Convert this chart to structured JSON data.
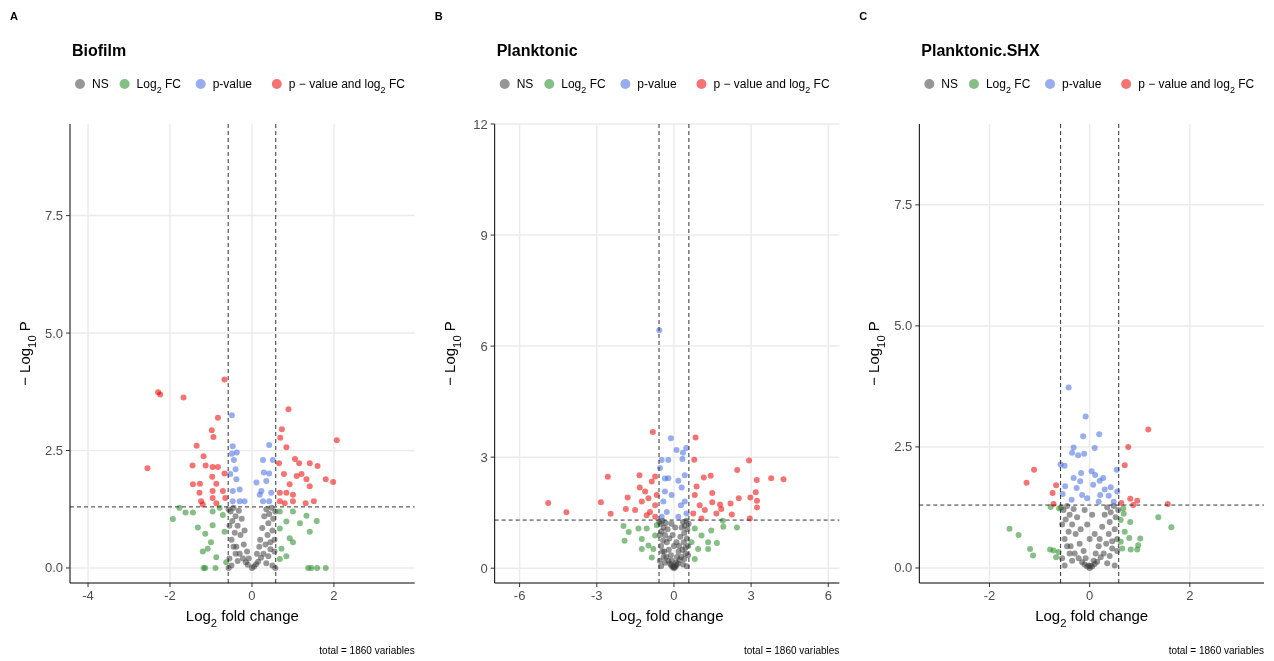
{
  "chart_data": [
    {
      "type": "scatter",
      "title": "Biofilm",
      "xlabel": "Log$_{2}$ fold change",
      "ylabel": "− Log$_{10}$ P",
      "annotations": [
        "A",
        "total = 1860 variables"
      ],
      "xlim": [
        -4.44,
        3.97
      ],
      "ylim": [
        -0.32,
        9.45
      ],
      "xticks": [
        -4,
        -2,
        0,
        2
      ],
      "yticks": [
        {
          "value": 0,
          "label": "0.0"
        },
        {
          "value": 2.5,
          "label": "2.5"
        },
        {
          "value": 5,
          "label": "5.0"
        },
        {
          "value": 7.5,
          "label": "7.5"
        }
      ],
      "grid": true,
      "legend": "top",
      "marker": "circle",
      "ref_lines": [
        {
          "axis": "x",
          "value": -0.58,
          "line_style": "dashed"
        },
        {
          "axis": "x",
          "value": 0.58,
          "line_style": "dashed"
        },
        {
          "axis": "y",
          "value": 1.3,
          "line_style": "dashed"
        }
      ],
      "series": [
        {
          "name": "NS",
          "color": "#404040",
          "x": [
            -0.57,
            -0.55,
            -0.52,
            -0.5,
            -0.48,
            -0.45,
            -0.42,
            -0.4,
            -0.38,
            -0.35,
            -0.32,
            -0.3,
            -0.28,
            -0.25,
            -0.22,
            -0.2,
            -0.18,
            -0.15,
            -0.12,
            -0.1,
            -0.08,
            0,
            0.05,
            0.1,
            0.12,
            0.15,
            0.18,
            0.2,
            0.22,
            0.25,
            0.28,
            0.3,
            0.33,
            0.35,
            0.38,
            0.4,
            0.42,
            0.45,
            0.48,
            0.5,
            0.52,
            0.55,
            0.57,
            -0.55,
            -0.5,
            -0.45,
            -0.4,
            -0.35,
            0.35,
            0.4,
            0.45,
            0.5,
            0.55,
            -0.57,
            0.57
          ],
          "values": [
            1.25,
            0.9,
            1.2,
            0.6,
            1.0,
            1.28,
            0.75,
            1.1,
            0.45,
            0.9,
            1.22,
            0.3,
            0.7,
            1.05,
            0.2,
            0.5,
            0.8,
            0.12,
            0.35,
            0.07,
            0.2,
            0,
            0.03,
            0.08,
            0.3,
            0.13,
            0.45,
            0.6,
            0.22,
            0.85,
            0.3,
            1.1,
            0.5,
            1.25,
            0.7,
            0.95,
            1.15,
            0.55,
            1.28,
            0.8,
            1.05,
            0.35,
            1.2,
            0.2,
            0.05,
            0.45,
            0.3,
            0.15,
            0.1,
            0.25,
            0.4,
            0.05,
            0.6,
            0,
            0
          ]
        },
        {
          "name": "Log$_{2}$ FC",
          "color": "#228b22",
          "x": [
            -1.93,
            -1.77,
            -1.62,
            -1.44,
            -1.32,
            -1.2,
            -1.18,
            -1.14,
            -0.89,
            -1.14,
            -0.96,
            -1.08,
            -0.87,
            -0.71,
            -0.67,
            -0.63,
            -0.79,
            -1.0,
            -0.96,
            0.68,
            0.84,
            1.0,
            1.17,
            1.33,
            1.58,
            1.41,
            0.84,
            0.68,
            0.92,
            0.72,
            1.37,
            1.45,
            1.59,
            1.8,
            0.68,
            1.0
          ],
          "values": [
            1.04,
            1.28,
            1.18,
            1.18,
            0.86,
            0.35,
            0,
            0,
            0,
            0.73,
            0.91,
            0.41,
            0.23,
            1.13,
            0.77,
            0.12,
            1.28,
            0.55,
            1.2,
            1.2,
            0.99,
            1.2,
            0.95,
            1.11,
            1.0,
            0.77,
            0.25,
            0.19,
            0.63,
            0.41,
            0,
            0,
            0,
            0,
            0.84,
            0.55
          ]
        },
        {
          "name": "p-value",
          "color": "#4169e1",
          "x": [
            -0.49,
            -0.47,
            -0.37,
            -0.49,
            -0.44,
            -0.4,
            -0.53,
            -0.38,
            -0.3,
            -0.47,
            -0.3,
            -0.47,
            -0.18,
            0.42,
            0.27,
            0.51,
            0.29,
            0.42,
            0.11,
            0.35,
            0.23,
            0.47,
            0.27,
            0.42,
            0.19
          ],
          "values": [
            3.25,
            2.59,
            2.46,
            2.43,
            2.3,
            2.1,
            2.0,
            1.89,
            1.67,
            1.64,
            1.42,
            1.42,
            1.42,
            2.62,
            2.3,
            2.3,
            2.03,
            2.01,
            1.82,
            1.85,
            1.64,
            1.6,
            1.42,
            1.42,
            1.56
          ]
        },
        {
          "name": "p − value and log$_{2}$ FC",
          "color": "#ee0000",
          "x": [
            -2.29,
            -2.24,
            -1.67,
            -0.67,
            -0.83,
            -0.98,
            -0.94,
            -1.35,
            -2.55,
            -1.18,
            -1.45,
            -1.13,
            -0.96,
            -0.83,
            -0.67,
            -0.97,
            -1.44,
            -1.27,
            -0.87,
            -1.28,
            -0.96,
            -0.71,
            -1.24,
            -0.96,
            -0.65,
            -1.2,
            -0.87,
            0.89,
            0.73,
            0.69,
            0.84,
            2.07,
            1.05,
            1.15,
            1.41,
            1.6,
            0.66,
            0.78,
            1.09,
            1.21,
            1.33,
            1.8,
            1.98,
            0.92,
            1.41,
            0.68,
            0.84,
            1.0,
            0.68,
            1.0,
            1.31,
            1.51,
            0.8
          ],
          "values": [
            3.74,
            3.69,
            3.63,
            4.01,
            3.2,
            2.93,
            2.79,
            2.6,
            2.12,
            2.38,
            2.18,
            2.18,
            2.15,
            2.15,
            2.01,
            1.94,
            1.78,
            1.79,
            1.79,
            1.6,
            1.64,
            1.64,
            1.42,
            1.49,
            1.49,
            1.35,
            1.38,
            3.38,
            2.95,
            2.77,
            2.57,
            2.72,
            2.32,
            2.23,
            2.23,
            2.17,
            2.23,
            2.0,
            1.96,
            2.0,
            1.89,
            1.89,
            1.83,
            1.78,
            1.74,
            1.6,
            1.6,
            1.56,
            1.42,
            1.42,
            1.38,
            1.42,
            1.38
          ]
        }
      ]
    },
    {
      "type": "scatter",
      "title": "Planktonic",
      "xlabel": "Log$_{2}$ fold change",
      "ylabel": "− Log$_{10}$ P",
      "annotations": [
        "B",
        "total = 1860 variables"
      ],
      "xlim": [
        -6.97,
        6.43
      ],
      "ylim": [
        -0.4,
        12
      ],
      "xticks": [
        -6,
        -3,
        0,
        3,
        6
      ],
      "yticks": [
        0,
        3,
        6,
        9,
        12
      ],
      "grid": true,
      "legend": "top",
      "marker": "circle",
      "ref_lines": [
        {
          "axis": "x",
          "value": -0.58,
          "line_style": "dashed"
        },
        {
          "axis": "x",
          "value": 0.58,
          "line_style": "dashed"
        },
        {
          "axis": "y",
          "value": 1.3,
          "line_style": "dashed"
        }
      ],
      "series": [
        {
          "name": "NS",
          "color": "#404040",
          "x": [
            -0.57,
            -0.55,
            -0.52,
            -0.5,
            -0.48,
            -0.45,
            -0.42,
            -0.4,
            -0.38,
            -0.35,
            -0.32,
            -0.3,
            -0.28,
            -0.25,
            -0.22,
            -0.2,
            -0.18,
            -0.15,
            -0.12,
            -0.1,
            -0.08,
            -0.05,
            -0.02,
            0,
            0.02,
            0.05,
            0.08,
            0.1,
            0.12,
            0.15,
            0.18,
            0.2,
            0.22,
            0.25,
            0.28,
            0.3,
            0.33,
            0.35,
            0.38,
            0.4,
            0.42,
            0.45,
            0.48,
            0.5,
            0.52,
            0.55,
            0.57,
            -0.55,
            -0.5,
            -0.45,
            -0.4,
            -0.35,
            0.35,
            0.4,
            0.45,
            0.5,
            0.55,
            -0.05,
            0.05,
            0,
            -0.1,
            0.1
          ],
          "values": [
            1.25,
            0.9,
            1.2,
            0.6,
            1.0,
            1.28,
            0.75,
            1.1,
            0.45,
            0.9,
            1.22,
            0.3,
            0.7,
            1.05,
            0.2,
            0.5,
            0.8,
            0.12,
            0.35,
            0.07,
            0.2,
            0.03,
            0.05,
            0,
            0.04,
            0.03,
            0.15,
            0.08,
            0.3,
            0.13,
            0.45,
            0.6,
            0.22,
            0.85,
            0.3,
            1.1,
            0.5,
            1.25,
            0.7,
            0.95,
            1.15,
            0.55,
            1.28,
            0.8,
            1.05,
            0.35,
            1.2,
            0.2,
            0.05,
            0.45,
            0.3,
            0.15,
            0.1,
            0.25,
            0.4,
            0.05,
            0.6,
            0.9,
            1.1,
            0.6,
            1.2,
            0.7
          ]
        },
        {
          "name": "Log$_{2}$ FC",
          "color": "#228b22",
          "x": [
            -1.96,
            -1.92,
            -1.76,
            -1.38,
            -1.25,
            -0.99,
            -0.86,
            -1.06,
            -0.73,
            -0.8,
            -1.25,
            -0.67,
            0.81,
            1.07,
            1.33,
            1.45,
            1.67,
            1.9,
            1.92,
            2.45,
            0.94,
            0.81,
            0.68,
            1.33
          ],
          "values": [
            1.14,
            0.74,
            0.98,
            1.07,
            0.79,
            0.61,
            0.29,
            1.07,
            0.88,
            0.52,
            0.52,
            1.16,
            1.07,
            0.88,
            0.7,
            1.02,
            0.68,
            1.28,
            1.12,
            1.1,
            0.52,
            0.25,
            0.7,
            0.52
          ]
        },
        {
          "name": "p-value",
          "color": "#4169e1",
          "x": [
            -0.57,
            -0.12,
            0.48,
            0.1,
            0.35,
            -0.48,
            -0.22,
            0.33,
            -0.54,
            0.42,
            -0.22,
            -0.35,
            0.17,
            0.3,
            -0.35,
            -0.09,
            -0.41,
            0.42,
            0.27,
            -0.28,
            0.49,
            -0.48,
            0.17
          ],
          "values": [
            6.43,
            3.51,
            3.25,
            3.19,
            3.12,
            2.92,
            2.92,
            2.95,
            2.71,
            2.51,
            2.43,
            2.42,
            2.36,
            2.18,
            2.07,
            1.98,
            1.8,
            1.8,
            1.7,
            1.52,
            1.48,
            1.39,
            1.39
          ]
        },
        {
          "name": "p − value and log$_{2}$ FC",
          "color": "#ee0000",
          "x": [
            -4.89,
            -4.18,
            -2.84,
            -2.57,
            -2.46,
            -1.8,
            -1.87,
            -1.51,
            -1.34,
            -1.33,
            -0.82,
            -0.73,
            -0.86,
            -1.12,
            -0.99,
            -0.73,
            -1.25,
            -0.93,
            -0.67,
            -1.06,
            -0.73,
            0.84,
            0.79,
            1.16,
            1.43,
            2.46,
            2.92,
            3.22,
            3.78,
            4.26,
            3.18,
            2.97,
            3.23,
            3.23,
            2.95,
            2.52,
            2.2,
            2.25,
            1.79,
            1.84,
            1.49,
            1.49,
            1.65,
            1.2,
            0.88,
            0.81,
            1.0,
            0.75,
            1.07
          ],
          "values": [
            1.76,
            1.51,
            1.78,
            2.47,
            1.47,
            1.91,
            1.6,
            1.57,
            2.51,
            2.18,
            3.68,
            2.48,
            2.34,
            2.07,
            1.89,
            1.7,
            1.8,
            1.52,
            1.98,
            1.43,
            1.39,
            3.53,
            2.93,
            2.45,
            2.5,
            2.65,
            2.91,
            2.38,
            2.43,
            2.4,
            2.05,
            1.91,
            1.82,
            1.64,
            1.34,
            1.89,
            1.75,
            1.45,
            1.72,
            1.6,
            2.03,
            1.78,
            1.48,
            1.57,
            2.21,
            1.98,
            1.7,
            1.48,
            1.34
          ]
        }
      ]
    },
    {
      "type": "scatter",
      "title": "Planktonic.SHX",
      "xlabel": "Log$_{2}$ fold change",
      "ylabel": "− Log$_{10}$ P",
      "annotations": [
        "C",
        "total = 1860 variables"
      ],
      "xlim": [
        -3.4,
        3.48
      ],
      "ylim": [
        -0.31,
        9.17
      ],
      "xticks": [
        -2,
        0,
        2
      ],
      "yticks": [
        {
          "value": 0,
          "label": "0.0"
        },
        {
          "value": 2.5,
          "label": "2.5"
        },
        {
          "value": 5,
          "label": "5.0"
        },
        {
          "value": 7.5,
          "label": "7.5"
        }
      ],
      "grid": true,
      "legend": "top",
      "marker": "circle",
      "ref_lines": [
        {
          "axis": "x",
          "value": -0.58,
          "line_style": "dashed"
        },
        {
          "axis": "x",
          "value": 0.58,
          "line_style": "dashed"
        },
        {
          "axis": "y",
          "value": 1.3,
          "line_style": "dashed"
        }
      ],
      "series": [
        {
          "name": "NS",
          "color": "#404040",
          "x": [
            -0.57,
            -0.55,
            -0.52,
            -0.5,
            -0.48,
            -0.45,
            -0.42,
            -0.4,
            -0.38,
            -0.35,
            -0.32,
            -0.3,
            -0.28,
            -0.25,
            -0.22,
            -0.2,
            -0.18,
            -0.15,
            -0.12,
            -0.1,
            -0.08,
            -0.05,
            -0.02,
            0,
            0.02,
            0.05,
            0.08,
            0.1,
            0.12,
            0.15,
            0.18,
            0.2,
            0.22,
            0.25,
            0.28,
            0.3,
            0.33,
            0.35,
            0.38,
            0.4,
            0.42,
            0.45,
            0.48,
            0.5,
            0.52,
            0.55,
            0.57,
            -0.55,
            -0.5,
            -0.45,
            -0.4,
            -0.35,
            0.35,
            0.4,
            0.45,
            0.5,
            0.55,
            -0.05,
            0.05,
            0,
            -0.1,
            0.1
          ],
          "values": [
            1.25,
            0.9,
            1.2,
            0.6,
            1.0,
            1.28,
            0.75,
            1.1,
            0.45,
            0.9,
            1.22,
            0.3,
            0.7,
            1.05,
            0.2,
            0.5,
            0.8,
            0.12,
            0.35,
            0.07,
            0.2,
            0.03,
            0.05,
            0,
            0.04,
            0.03,
            0.15,
            0.08,
            0.3,
            0.13,
            0.45,
            0.6,
            0.22,
            0.85,
            0.3,
            1.1,
            0.5,
            1.25,
            0.7,
            0.95,
            1.15,
            0.55,
            1.28,
            0.8,
            1.05,
            0.35,
            1.2,
            0.2,
            0.05,
            0.45,
            0.3,
            0.15,
            0.1,
            0.25,
            0.4,
            0.05,
            0.6,
            0.9,
            1.1,
            0.6,
            1.2,
            0.7
          ]
        },
        {
          "name": "Log$_{2}$ FC",
          "color": "#228b22",
          "x": [
            -1.6,
            -1.42,
            -1.19,
            -1.13,
            -0.78,
            -0.79,
            -0.72,
            -0.67,
            -0.62,
            -0.61,
            0.67,
            0.68,
            0.81,
            0.62,
            0.7,
            0.79,
            0.62,
            0.82,
            0.97,
            0.95,
            1.01,
            1.37,
            1.63,
            0.65
          ],
          "values": [
            0.81,
            0.68,
            0.39,
            0.26,
            1.26,
            0.38,
            0.36,
            0.22,
            0.33,
            1.23,
            1.23,
            1.12,
            0.95,
            0.99,
            0.75,
            0.62,
            0.54,
            0.38,
            0.47,
            0.38,
            0.61,
            1.05,
            0.84,
            0.4
          ]
        },
        {
          "name": "p-value",
          "color": "#4169e1",
          "x": [
            -0.42,
            -0.08,
            -0.13,
            0.19,
            0.1,
            -0.32,
            -0.35,
            -0.23,
            -0.11,
            -0.58,
            -0.5,
            0.54,
            0.04,
            -0.17,
            0.11,
            -0.32,
            0.27,
            -0.19,
            0.2,
            -0.49,
            -0.26,
            0.07,
            0.42,
            0.3,
            0.55,
            -0.54,
            -0.15,
            0.21,
            0.38,
            -0.36,
            -0.05,
            0.18,
            0.48
          ],
          "values": [
            3.73,
            3.13,
            2.72,
            2.76,
            2.48,
            2.49,
            2.38,
            2.33,
            2.36,
            2.14,
            2.11,
            2.03,
            2.0,
            1.96,
            1.92,
            1.86,
            1.86,
            1.79,
            1.8,
            1.69,
            1.65,
            1.72,
            1.67,
            1.62,
            1.58,
            1.53,
            1.51,
            1.51,
            1.49,
            1.41,
            1.44,
            1.37,
            1.37
          ]
        },
        {
          "name": "p − value and log$_{2}$ FC",
          "color": "#ee0000",
          "x": [
            -1.11,
            -1.26,
            -0.67,
            -0.74,
            -0.72,
            1.17,
            0.77,
            0.7,
            0.81,
            0.95,
            0.87,
            0.63,
            1.56
          ],
          "values": [
            2.03,
            1.76,
            1.71,
            1.55,
            1.32,
            2.86,
            2.5,
            2.12,
            1.43,
            1.39,
            1.3,
            1.34,
            1.32
          ]
        }
      ]
    }
  ]
}
